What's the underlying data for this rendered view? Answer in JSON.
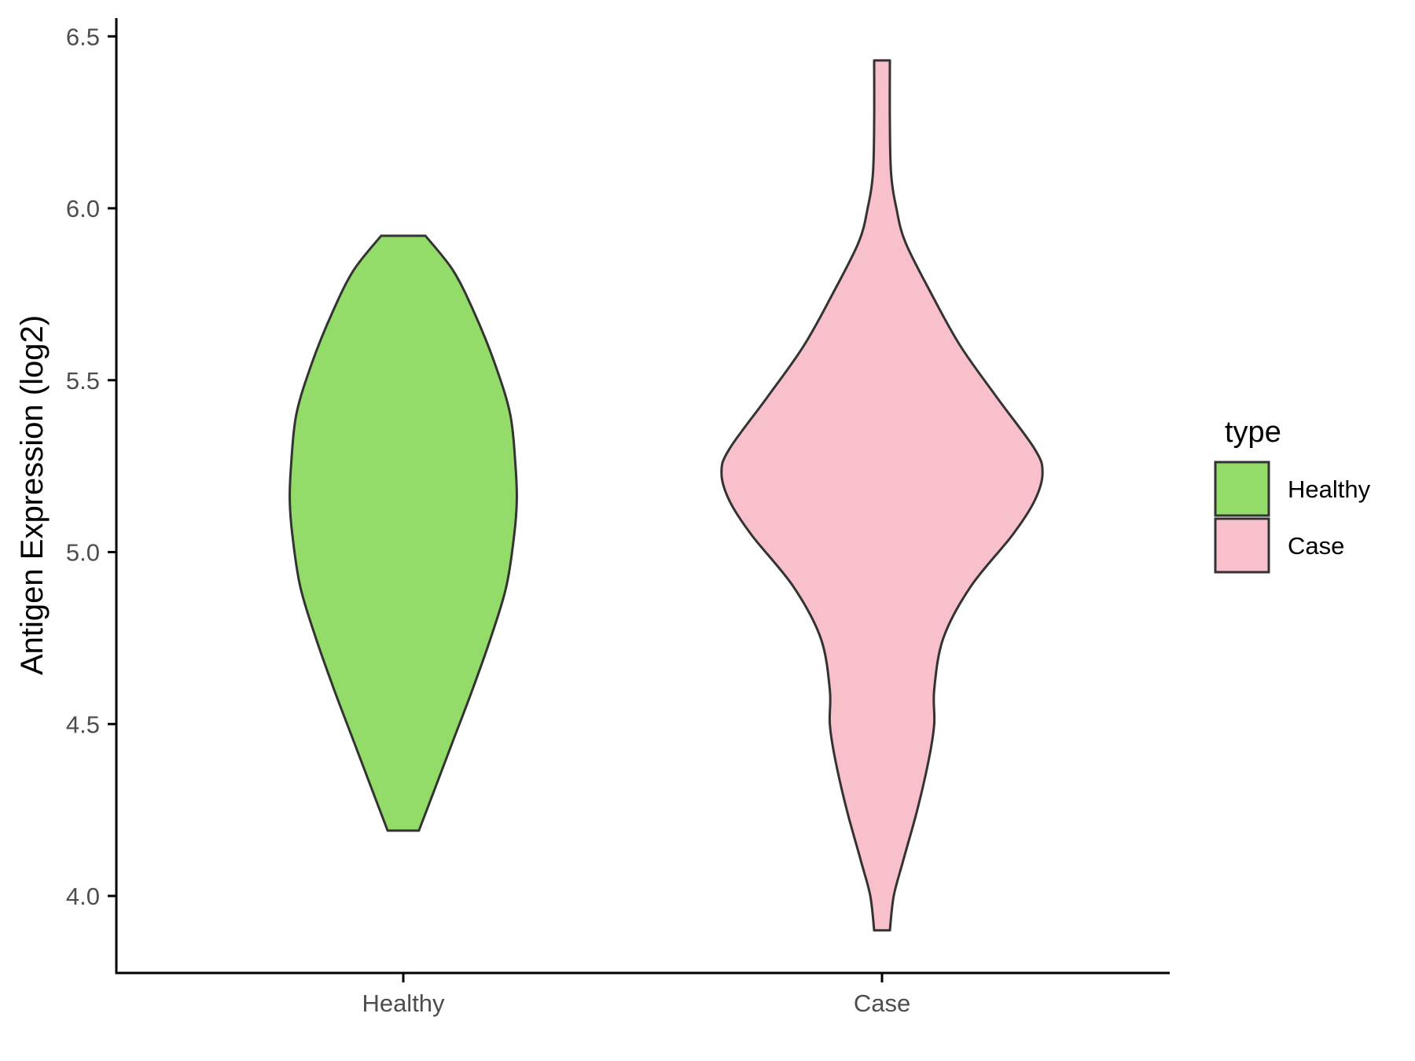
{
  "chart_data": {
    "type": "violin",
    "ylabel": "Antigen Expression (log2)",
    "xlabel": "",
    "ylim": [
      3.78,
      6.55
    ],
    "y_ticks": [
      "4.0",
      "4.5",
      "5.0",
      "5.5",
      "6.0",
      "6.5"
    ],
    "y_tick_values": [
      4.0,
      4.5,
      5.0,
      5.5,
      6.0,
      6.5
    ],
    "categories": [
      "Healthy",
      "Case"
    ],
    "grid": false,
    "legend": {
      "title": "type",
      "position": "right",
      "items": [
        {
          "label": "Healthy",
          "color": "#93dc6a"
        },
        {
          "label": "Case",
          "color": "#f7c0cb"
        }
      ]
    },
    "series": [
      {
        "name": "Healthy",
        "color": "#93dc6a",
        "y_min": 4.19,
        "y_max": 5.92,
        "profile": [
          {
            "y": 4.19,
            "w": 0.12
          },
          {
            "y": 4.3,
            "w": 0.23
          },
          {
            "y": 4.45,
            "w": 0.38
          },
          {
            "y": 4.6,
            "w": 0.53
          },
          {
            "y": 4.75,
            "w": 0.67
          },
          {
            "y": 4.9,
            "w": 0.79
          },
          {
            "y": 5.05,
            "w": 0.85
          },
          {
            "y": 5.15,
            "w": 0.87
          },
          {
            "y": 5.25,
            "w": 0.86
          },
          {
            "y": 5.4,
            "w": 0.82
          },
          {
            "y": 5.55,
            "w": 0.7
          },
          {
            "y": 5.7,
            "w": 0.54
          },
          {
            "y": 5.82,
            "w": 0.38
          },
          {
            "y": 5.92,
            "w": 0.17
          }
        ]
      },
      {
        "name": "Case",
        "color": "#f7c0cb",
        "y_min": 3.9,
        "y_max": 6.43,
        "profile": [
          {
            "y": 3.9,
            "w": 0.06
          },
          {
            "y": 4.0,
            "w": 0.09
          },
          {
            "y": 4.1,
            "w": 0.16
          },
          {
            "y": 4.25,
            "w": 0.27
          },
          {
            "y": 4.4,
            "w": 0.36
          },
          {
            "y": 4.5,
            "w": 0.4
          },
          {
            "y": 4.6,
            "w": 0.4
          },
          {
            "y": 4.75,
            "w": 0.47
          },
          {
            "y": 4.9,
            "w": 0.68
          },
          {
            "y": 5.05,
            "w": 1.0
          },
          {
            "y": 5.15,
            "w": 1.17
          },
          {
            "y": 5.23,
            "w": 1.23
          },
          {
            "y": 5.3,
            "w": 1.17
          },
          {
            "y": 5.45,
            "w": 0.88
          },
          {
            "y": 5.6,
            "w": 0.6
          },
          {
            "y": 5.75,
            "w": 0.38
          },
          {
            "y": 5.9,
            "w": 0.18
          },
          {
            "y": 6.0,
            "w": 0.11
          },
          {
            "y": 6.1,
            "w": 0.07
          },
          {
            "y": 6.25,
            "w": 0.06
          },
          {
            "y": 6.43,
            "w": 0.06
          }
        ]
      }
    ]
  }
}
